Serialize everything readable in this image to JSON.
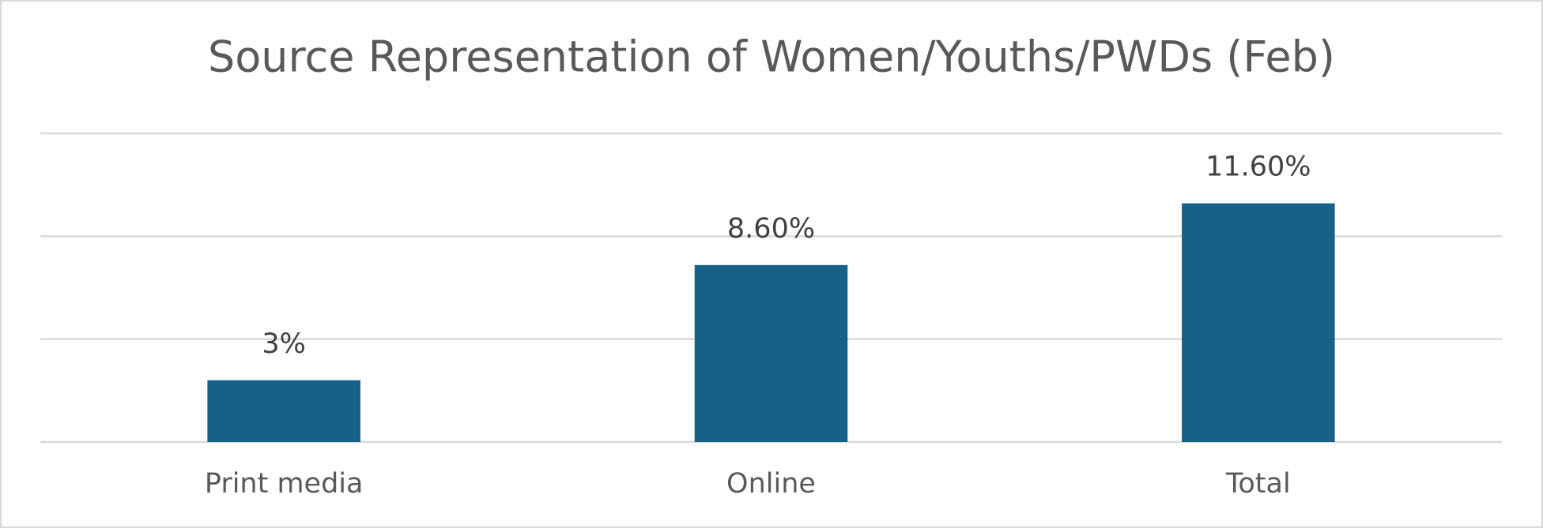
{
  "chart_data": {
    "type": "bar",
    "title": "Source Representation of Women/Youths/PWDs (Feb)",
    "categories": [
      "Print media",
      "Online",
      "Total"
    ],
    "values": [
      3,
      8.6,
      11.6
    ],
    "value_labels": [
      "3%",
      "8.60%",
      "11.60%"
    ],
    "color": "#176087",
    "ylim": [
      0,
      15
    ],
    "yticks": [
      0,
      5,
      10,
      15
    ],
    "grid": true
  }
}
